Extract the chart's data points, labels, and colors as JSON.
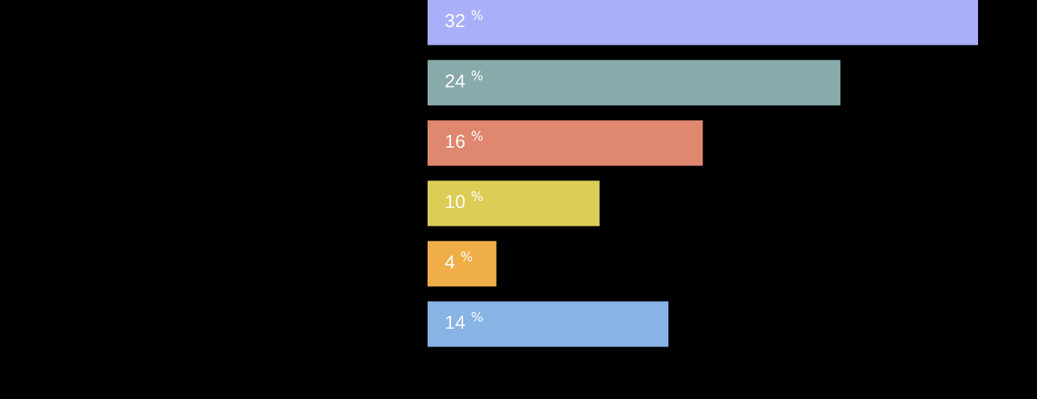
{
  "chart_data": {
    "type": "bar",
    "orientation": "horizontal",
    "categories": [
      null,
      null,
      null,
      null,
      null,
      null
    ],
    "values": [
      32,
      24,
      16,
      10,
      4,
      14
    ],
    "colors": [
      "#a9aff8",
      "#88aaaa",
      "#e0876f",
      "#dbcd55",
      "#f0ae49",
      "#87b3e5"
    ],
    "value_labels": [
      "32 $^{%}$",
      "24 $^{%}$",
      "16 $^{%}$",
      "10 $^{%}$",
      "4 $^{%}$",
      "14 $^{%}$"
    ],
    "grid": false,
    "legend": false
  }
}
